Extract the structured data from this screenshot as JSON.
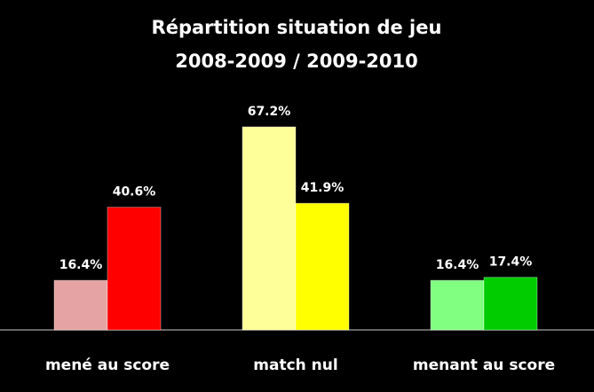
{
  "chart_data": {
    "type": "bar",
    "title": "Répartition situation de jeu",
    "subtitle": "2008-2009 / 2009-2010",
    "categories": [
      "mené au score",
      "match nul",
      "menant au score"
    ],
    "series": [
      {
        "values": [
          16.4,
          67.2,
          16.4
        ],
        "value_labels": [
          "16.4%",
          "67.2%",
          "16.4%"
        ],
        "colors": [
          "#e6a3a3",
          "#ffff99",
          "#80ff80"
        ]
      },
      {
        "values": [
          40.6,
          41.9,
          17.4
        ],
        "value_labels": [
          "40.6%",
          "41.9%",
          "17.4%"
        ],
        "colors": [
          "#ff0000",
          "#ffff00",
          "#00cc00"
        ]
      }
    ]
  }
}
